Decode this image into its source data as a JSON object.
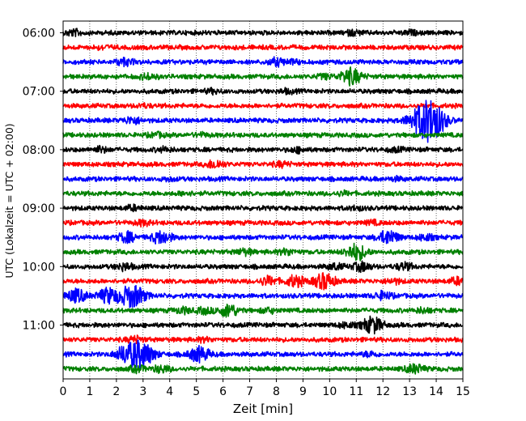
{
  "chart_data": {
    "type": "line",
    "title": "",
    "xlabel": "Zeit  [min]",
    "ylabel": "UTC (Lokalzeit = UTC + 02:00)",
    "xlim": [
      0,
      15
    ],
    "x_ticks": [
      "0",
      "1",
      "2",
      "3",
      "4",
      "5",
      "6",
      "7",
      "8",
      "9",
      "10",
      "11",
      "12",
      "13",
      "14",
      "15"
    ],
    "y_ticks": [
      "06:00",
      "07:00",
      "08:00",
      "09:00",
      "10:00",
      "11:00"
    ],
    "grid": "vertical dotted lines at every minute",
    "trace_interval_minutes": 15,
    "trace_colors": [
      "#000000",
      "#ff0000",
      "#0000ff",
      "#008000"
    ],
    "series": [
      {
        "start": "06:00",
        "color": "#000000",
        "events": [
          [
            0.4,
            0.5
          ],
          [
            10.9,
            0.4
          ],
          [
            13.0,
            0.3
          ]
        ]
      },
      {
        "start": "06:15",
        "color": "#ff0000",
        "events": [
          [
            1.5,
            0.25
          ]
        ]
      },
      {
        "start": "06:30",
        "color": "#0000ff",
        "events": [
          [
            2.3,
            0.6
          ],
          [
            8.0,
            0.6
          ],
          [
            8.6,
            0.3
          ]
        ]
      },
      {
        "start": "06:45",
        "color": "#008000",
        "events": [
          [
            3.2,
            0.5
          ],
          [
            9.8,
            0.4
          ],
          [
            10.8,
            1.5
          ]
        ]
      },
      {
        "start": "07:00",
        "color": "#000000",
        "events": [
          [
            5.6,
            0.3
          ],
          [
            8.4,
            0.3
          ]
        ]
      },
      {
        "start": "07:15",
        "color": "#ff0000",
        "events": [
          [
            3.0,
            0.25
          ]
        ]
      },
      {
        "start": "07:30",
        "color": "#0000ff",
        "events": [
          [
            2.6,
            0.6
          ],
          [
            13.6,
            3.5
          ],
          [
            14.0,
            1.5
          ]
        ]
      },
      {
        "start": "07:45",
        "color": "#008000",
        "events": [
          [
            3.5,
            0.35
          ],
          [
            5.2,
            0.25
          ]
        ]
      },
      {
        "start": "08:00",
        "color": "#000000",
        "events": [
          [
            1.4,
            0.45
          ],
          [
            3.8,
            0.35
          ],
          [
            8.8,
            0.4
          ],
          [
            12.5,
            0.3
          ]
        ]
      },
      {
        "start": "08:15",
        "color": "#ff0000",
        "events": [
          [
            5.7,
            0.75
          ],
          [
            8.2,
            0.4
          ]
        ]
      },
      {
        "start": "08:30",
        "color": "#0000ff",
        "events": [
          [
            4.0,
            0.25
          ],
          [
            12.5,
            0.25
          ]
        ]
      },
      {
        "start": "08:45",
        "color": "#008000",
        "events": [
          [
            4.6,
            0.3
          ],
          [
            10.5,
            0.3
          ]
        ]
      },
      {
        "start": "09:00",
        "color": "#000000",
        "events": [
          [
            2.6,
            0.4
          ],
          [
            11.0,
            0.3
          ]
        ]
      },
      {
        "start": "09:15",
        "color": "#ff0000",
        "events": [
          [
            3.0,
            0.4
          ],
          [
            11.6,
            0.3
          ]
        ]
      },
      {
        "start": "09:30",
        "color": "#0000ff",
        "events": [
          [
            2.4,
            0.9
          ],
          [
            3.7,
            1.2
          ],
          [
            12.2,
            1.3
          ],
          [
            13.6,
            0.5
          ]
        ]
      },
      {
        "start": "09:45",
        "color": "#008000",
        "events": [
          [
            6.8,
            0.5
          ],
          [
            8.4,
            0.5
          ],
          [
            11.0,
            1.5
          ]
        ]
      },
      {
        "start": "10:00",
        "color": "#000000",
        "events": [
          [
            2.3,
            0.6
          ],
          [
            10.2,
            0.5
          ],
          [
            11.2,
            0.8
          ],
          [
            12.8,
            0.6
          ]
        ]
      },
      {
        "start": "10:15",
        "color": "#ff0000",
        "events": [
          [
            7.7,
            0.8
          ],
          [
            8.7,
            1.0
          ],
          [
            9.8,
            1.5
          ],
          [
            12.4,
            0.4
          ],
          [
            14.8,
            0.6
          ]
        ]
      },
      {
        "start": "10:30",
        "color": "#0000ff",
        "events": [
          [
            0.5,
            1.2
          ],
          [
            1.7,
            1.4
          ],
          [
            2.6,
            2.2
          ],
          [
            12.0,
            0.7
          ]
        ]
      },
      {
        "start": "10:45",
        "color": "#008000",
        "events": [
          [
            4.5,
            0.5
          ],
          [
            5.3,
            0.5
          ],
          [
            6.2,
            1.2
          ],
          [
            7.7,
            0.4
          ],
          [
            13.5,
            0.4
          ]
        ]
      },
      {
        "start": "11:00",
        "color": "#000000",
        "events": [
          [
            10.6,
            0.4
          ],
          [
            11.6,
            1.5
          ]
        ]
      },
      {
        "start": "11:15",
        "color": "#ff0000",
        "events": [
          [
            2.7,
            0.5
          ],
          [
            5.3,
            0.3
          ]
        ]
      },
      {
        "start": "11:30",
        "color": "#0000ff",
        "events": [
          [
            2.3,
            1.2
          ],
          [
            2.9,
            2.6
          ],
          [
            5.1,
            1.4
          ],
          [
            11.5,
            0.4
          ]
        ]
      },
      {
        "start": "11:45",
        "color": "#008000",
        "events": [
          [
            2.8,
            0.5
          ],
          [
            3.7,
            0.6
          ],
          [
            13.2,
            0.8
          ]
        ]
      }
    ]
  }
}
